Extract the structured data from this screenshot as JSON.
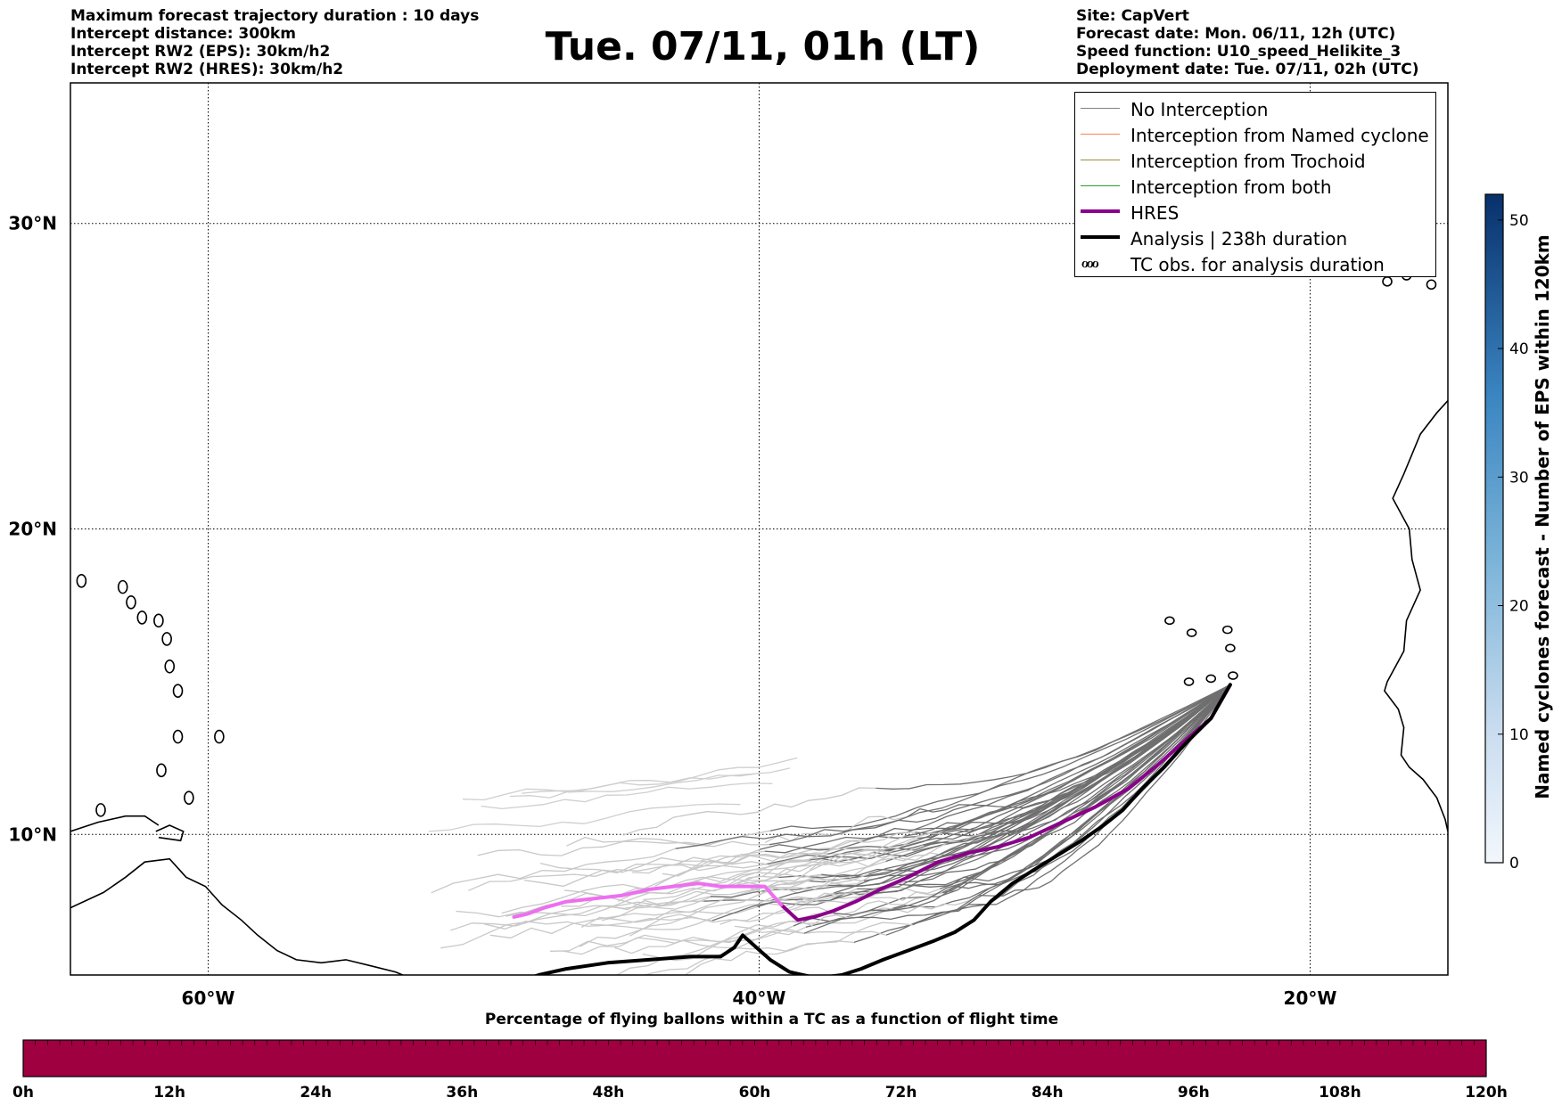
{
  "header": {
    "left_lines": [
      "Maximum forecast trajectory duration : 10 days",
      "Intercept distance: 300km",
      "Intercept RW2 (EPS):  30km/h2",
      "Intercept RW2 (HRES): 30km/h2"
    ],
    "title": "Tue. 07/11, 01h (LT)",
    "right_lines": [
      "Site: CapVert",
      "Forecast date: Mon. 06/11, 12h (UTC)",
      "Speed function: U10_speed_Helikite_3",
      "Deployment date: Tue. 07/11, 02h (UTC)"
    ]
  },
  "map": {
    "lon_range": [
      -65,
      -15
    ],
    "lat_range": [
      5.4,
      34.6
    ],
    "lat_ticks": [
      {
        "value": 30,
        "label": "30°N"
      },
      {
        "value": 20,
        "label": "20°N"
      },
      {
        "value": 10,
        "label": "10°N"
      }
    ],
    "lon_ticks": [
      {
        "value": -60,
        "label": "60°W"
      },
      {
        "value": -40,
        "label": "40°W"
      },
      {
        "value": -20,
        "label": "20°W"
      }
    ],
    "grid": "dotted"
  },
  "legend": {
    "items": [
      {
        "label": "No Interception",
        "color": "#808080",
        "width": 1.5
      },
      {
        "label": "Interception from Named cyclone",
        "color": "#ff7f50",
        "width": 1.5
      },
      {
        "label": "Interception from Trochoid",
        "color": "#9a8c3a",
        "width": 1.5
      },
      {
        "label": "Interception from both",
        "color": "#2ca02c",
        "width": 1.5
      },
      {
        "label": "HRES",
        "color": "#8b008b",
        "width": 4
      },
      {
        "label": "Analysis | 238h duration",
        "color": "#000000",
        "width": 4
      }
    ],
    "tc_label": "TC obs. for analysis duration",
    "tc_symbol": "ℴℴℴ"
  },
  "trajectories": {
    "origin": [
      -22.9,
      14.9
    ],
    "hres": [
      [
        -22.9,
        14.9
      ],
      [
        -23.6,
        13.8
      ],
      [
        -24.5,
        13.1
      ],
      [
        -25.5,
        12.3
      ],
      [
        -26.6,
        11.5
      ],
      [
        -27.8,
        10.9
      ],
      [
        -29.0,
        10.4
      ],
      [
        -30.2,
        9.9
      ],
      [
        -31.3,
        9.6
      ],
      [
        -32.4,
        9.4
      ],
      [
        -33.5,
        9.1
      ],
      [
        -34.6,
        8.6
      ],
      [
        -35.6,
        8.2
      ],
      [
        -36.5,
        7.8
      ],
      [
        -37.3,
        7.5
      ],
      [
        -38.0,
        7.3
      ],
      [
        -38.6,
        7.2
      ],
      [
        -39.2,
        7.7
      ],
      [
        -39.8,
        8.3
      ],
      [
        -40.6,
        8.3
      ],
      [
        -41.4,
        8.3
      ],
      [
        -42.2,
        8.4
      ],
      [
        -43.1,
        8.3
      ],
      [
        -44.0,
        8.2
      ],
      [
        -45.0,
        8.0
      ],
      [
        -46.0,
        7.9
      ],
      [
        -47.0,
        7.8
      ],
      [
        -47.8,
        7.6
      ],
      [
        -48.4,
        7.4
      ],
      [
        -48.9,
        7.3
      ]
    ],
    "analysis": [
      [
        -22.9,
        14.9
      ],
      [
        -23.6,
        13.8
      ],
      [
        -24.5,
        13.0
      ],
      [
        -25.3,
        12.2
      ],
      [
        -26.1,
        11.5
      ],
      [
        -26.8,
        10.8
      ],
      [
        -27.5,
        10.3
      ],
      [
        -28.3,
        9.8
      ],
      [
        -29.2,
        9.3
      ],
      [
        -30.1,
        8.8
      ],
      [
        -30.8,
        8.4
      ],
      [
        -31.6,
        7.8
      ],
      [
        -32.2,
        7.2
      ],
      [
        -32.9,
        6.8
      ],
      [
        -33.7,
        6.5
      ],
      [
        -34.6,
        6.2
      ],
      [
        -35.5,
        5.9
      ],
      [
        -36.3,
        5.6
      ],
      [
        -37.0,
        5.4
      ],
      [
        -37.9,
        5.3
      ],
      [
        -38.9,
        5.5
      ],
      [
        -39.6,
        5.9
      ],
      [
        -40.1,
        6.3
      ],
      [
        -40.6,
        6.7
      ],
      [
        -40.9,
        6.3
      ],
      [
        -41.4,
        6.0
      ],
      [
        -42.5,
        6.0
      ],
      [
        -44.0,
        5.9
      ],
      [
        -45.5,
        5.8
      ],
      [
        -47.0,
        5.6
      ],
      [
        -48.0,
        5.4
      ],
      [
        -48.7,
        5.2
      ]
    ]
  },
  "bottom_colorbar": {
    "title": "Percentage of flying ballons within a TC as a function of flight time",
    "ticks": [
      "0h",
      "12h",
      "24h",
      "36h",
      "48h",
      "60h",
      "72h",
      "84h",
      "96h",
      "108h",
      "120h"
    ],
    "color": "#9e0040"
  },
  "right_colorbar": {
    "title": "Named cyclones forecast - Number of EPS within 120km",
    "ticks": [
      0,
      10,
      20,
      30,
      40,
      50
    ],
    "vmax": 52,
    "color_low": "#eaf2fb",
    "color_high": "#08306b"
  }
}
